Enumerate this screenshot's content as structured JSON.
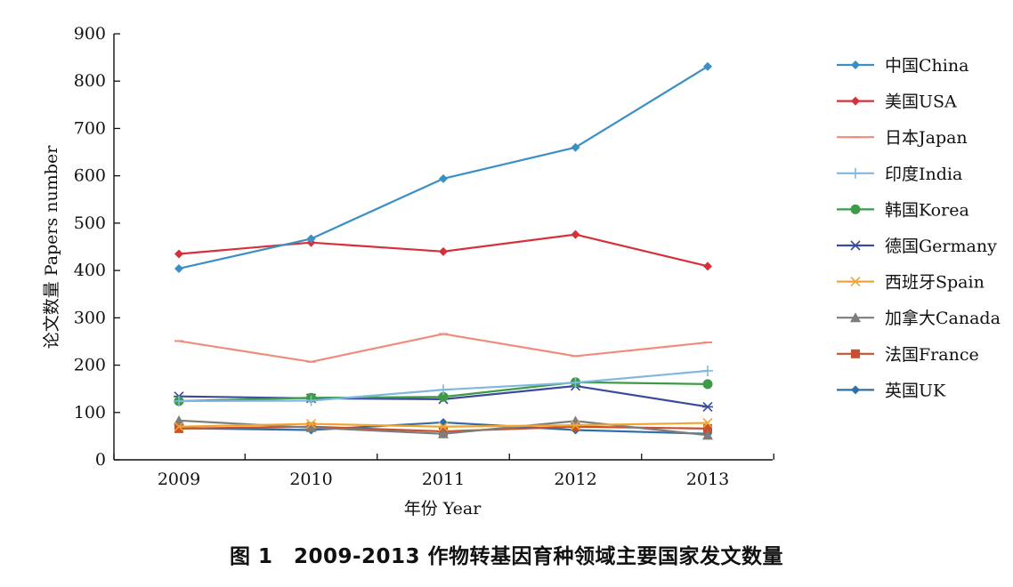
{
  "caption": "图 1　2009-2013 作物转基因育种领域主要国家发文数量",
  "chart_data": {
    "type": "line",
    "title": "",
    "xlabel": "年份 Year",
    "ylabel": "论文数量 Papers number",
    "x": [
      "2009",
      "2010",
      "2011",
      "2012",
      "2013"
    ],
    "ylim": [
      0,
      900
    ],
    "yticks": [
      0,
      100,
      200,
      300,
      400,
      500,
      600,
      700,
      800,
      900
    ],
    "grid": false,
    "legend_position": "right",
    "series": [
      {
        "name": "中国China",
        "color": "#3a8fc4",
        "marker": "diamond",
        "values": [
          404,
          467,
          594,
          660,
          831
        ]
      },
      {
        "name": "美国USA",
        "color": "#d6303a",
        "marker": "diamond",
        "values": [
          435,
          459,
          440,
          476,
          409
        ]
      },
      {
        "name": "日本Japan",
        "color": "#ee8d7c",
        "marker": "dash",
        "values": [
          251,
          207,
          266,
          219,
          248
        ]
      },
      {
        "name": "印度India",
        "color": "#7fb8de",
        "marker": "plus",
        "values": [
          124,
          125,
          148,
          163,
          188
        ]
      },
      {
        "name": "韩国Korea",
        "color": "#3d9a47",
        "marker": "circle",
        "values": [
          124,
          131,
          133,
          164,
          160
        ]
      },
      {
        "name": "德国Germany",
        "color": "#3c4a9c",
        "marker": "asterisk",
        "values": [
          134,
          130,
          128,
          156,
          112
        ]
      },
      {
        "name": "西班牙Spain",
        "color": "#f0a531",
        "marker": "x",
        "values": [
          70,
          76,
          70,
          73,
          78
        ]
      },
      {
        "name": "加拿大Canada",
        "color": "#7d7d7d",
        "marker": "triangle",
        "values": [
          83,
          68,
          55,
          82,
          52
        ]
      },
      {
        "name": "法国France",
        "color": "#c8502e",
        "marker": "square",
        "values": [
          66,
          70,
          60,
          70,
          66
        ]
      },
      {
        "name": "英国UK",
        "color": "#2f6fa8",
        "marker": "diamond",
        "values": [
          67,
          63,
          79,
          63,
          55
        ]
      }
    ]
  }
}
